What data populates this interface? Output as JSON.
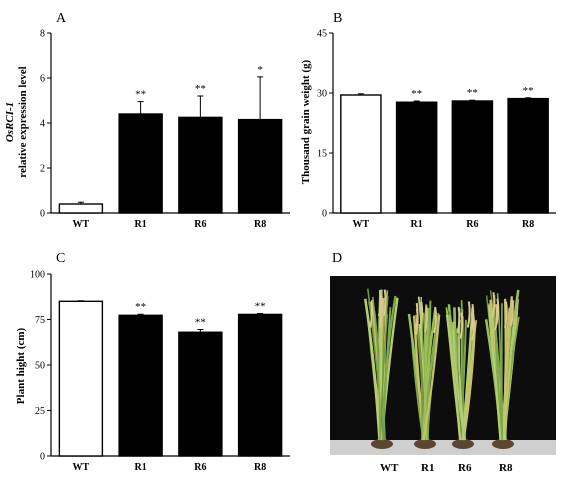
{
  "chart_data": [
    {
      "type": "bar",
      "panel_label": "A",
      "ylabel_line1": "OsRCI-1",
      "ylabel_line2": "relative expression level",
      "categories": [
        "WT",
        "R1",
        "R6",
        "R8"
      ],
      "values": [
        0.4,
        4.4,
        4.25,
        4.15
      ],
      "errors": [
        0.08,
        0.55,
        0.95,
        1.9
      ],
      "significance": [
        "",
        "**",
        "**",
        "*"
      ],
      "fills": [
        "#ffffff",
        "#000000",
        "#000000",
        "#000000"
      ],
      "ylim": [
        0,
        8
      ],
      "yticks": [
        "0",
        "2",
        "4",
        "6",
        "8"
      ]
    },
    {
      "type": "bar",
      "panel_label": "B",
      "ylabel": "Thousand grain weight (g)",
      "categories": [
        "WT",
        "R1",
        "R6",
        "R8"
      ],
      "values": [
        29.5,
        27.7,
        28.0,
        28.6
      ],
      "errors": [
        0.3,
        0.3,
        0.2,
        0.2
      ],
      "significance": [
        "",
        "**",
        "**",
        "**"
      ],
      "fills": [
        "#ffffff",
        "#000000",
        "#000000",
        "#000000"
      ],
      "ylim": [
        0,
        45
      ],
      "yticks": [
        "0",
        "15",
        "30",
        "45"
      ]
    },
    {
      "type": "bar",
      "panel_label": "C",
      "ylabel": "Plant hight (cm)",
      "categories": [
        "WT",
        "R1",
        "R6",
        "R8"
      ],
      "values": [
        85,
        77.3,
        68,
        77.8
      ],
      "errors": [
        0.3,
        0.6,
        1.5,
        0.5
      ],
      "significance": [
        "",
        "**",
        "**",
        "**"
      ],
      "fills": [
        "#ffffff",
        "#000000",
        "#000000",
        "#000000"
      ],
      "ylim": [
        0,
        100
      ],
      "yticks": [
        "0",
        "25",
        "50",
        "75",
        "100"
      ]
    }
  ],
  "photo": {
    "panel_label": "D",
    "labels": [
      "WT",
      "R1",
      "R6",
      "R8"
    ]
  }
}
